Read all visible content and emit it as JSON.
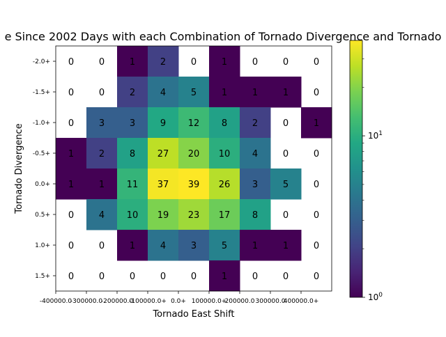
{
  "chart_data": {
    "type": "heatmap",
    "title": "e Since 2002 Days with each Combination of Tornado Divergence and Tornado",
    "xlabel": "Tornado East Shift",
    "ylabel": "Tornado Divergence",
    "x_tick_labels": [
      "-400000.0+",
      "-300000.0+",
      "-200000.0+",
      "-100000.0+",
      "0.0+",
      "100000.0+",
      "200000.0+",
      "300000.0+",
      "400000.0+"
    ],
    "x_tick_labels_as_shown": [
      "-400000.0",
      "-300000.0",
      "-200000.0",
      "-100000.0+",
      "0.0+",
      "100000.0+",
      "200000.0",
      "300000.0",
      "400000.0+"
    ],
    "y_tick_labels": [
      "-2.0+",
      "-1.5+",
      "-1.0+",
      "-0.5+",
      "0.0+",
      "0.5+",
      "1.0+",
      "1.5+"
    ],
    "values": [
      [
        0,
        0,
        1,
        2,
        0,
        1,
        0,
        0,
        0
      ],
      [
        0,
        0,
        2,
        4,
        5,
        1,
        1,
        1,
        0
      ],
      [
        0,
        3,
        3,
        9,
        12,
        8,
        2,
        0,
        1
      ],
      [
        1,
        2,
        8,
        27,
        20,
        10,
        4,
        0,
        0
      ],
      [
        1,
        1,
        11,
        37,
        39,
        26,
        3,
        5,
        0
      ],
      [
        0,
        4,
        10,
        19,
        23,
        17,
        8,
        0,
        0
      ],
      [
        0,
        0,
        1,
        4,
        3,
        5,
        1,
        1,
        0
      ],
      [
        0,
        0,
        0,
        0,
        0,
        1,
        0,
        0,
        0
      ]
    ],
    "zero_cells": "blank (white)",
    "colormap": "viridis",
    "color_scale": "log",
    "color_range": [
      1,
      39
    ],
    "colorbar_tick_labels": [
      "10^0",
      "10^1"
    ],
    "colorbar_ticks": [
      1,
      10
    ],
    "colorbar_placement": "right",
    "grid": false
  }
}
